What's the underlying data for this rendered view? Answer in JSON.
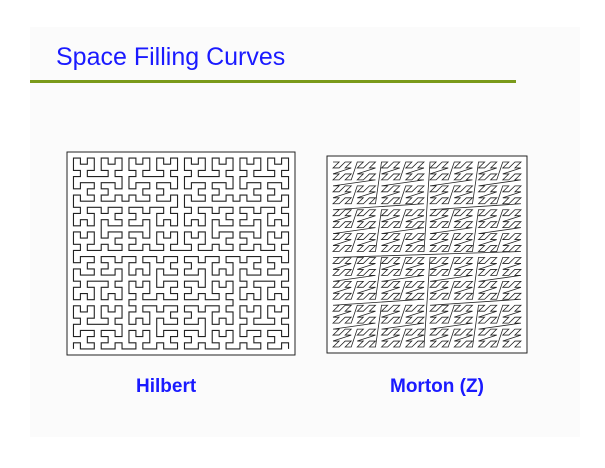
{
  "slide": {
    "title": "Space Filling Curves",
    "captions": {
      "hilbert": "Hilbert",
      "morton": "Morton (Z)"
    }
  },
  "figures": {
    "hilbert": {
      "curve": "hilbert",
      "order": 5
    },
    "morton": {
      "curve": "morton",
      "order": 5
    }
  },
  "colors": {
    "title": "#1a1aff",
    "rule": "#7a9a1a",
    "caption": "#1a1aff",
    "curve": "#222222"
  }
}
